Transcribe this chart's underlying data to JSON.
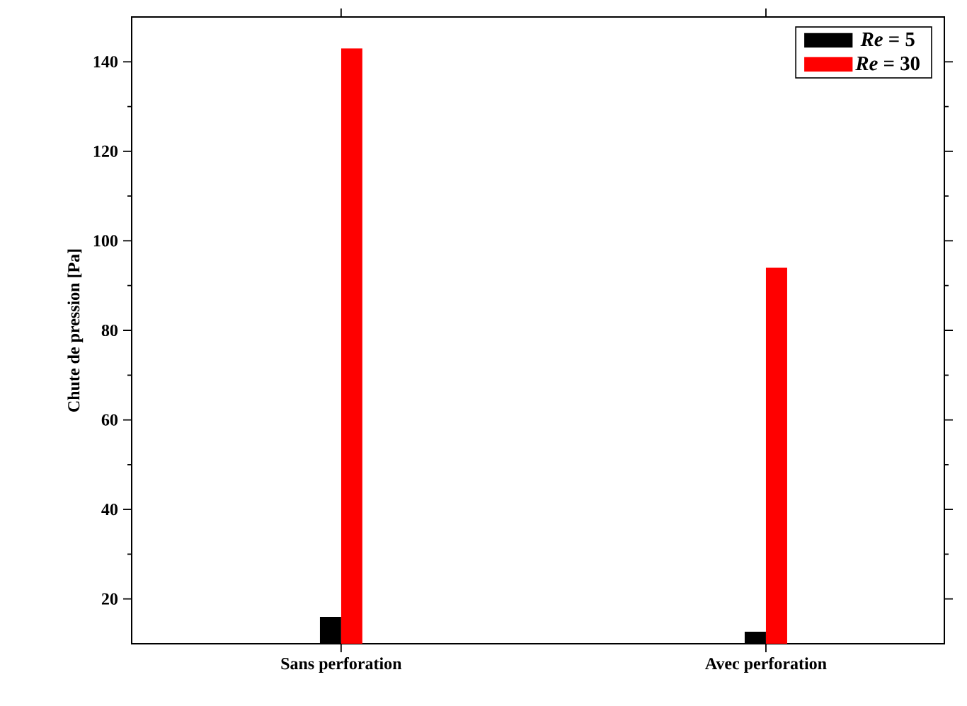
{
  "chart_data": {
    "type": "bar",
    "ylabel": "Chute de pression [Pa]",
    "categories": [
      "Sans perforation",
      "Avec perforation"
    ],
    "series": [
      {
        "name": "*Re* = 5",
        "color": "#000000",
        "values": [
          16,
          12.7
        ]
      },
      {
        "name": "*Re* = 30",
        "color": "#ff0000",
        "values": [
          143,
          94
        ]
      }
    ],
    "ylim": [
      10,
      150
    ],
    "yticks": [
      20,
      40,
      60,
      80,
      100,
      120,
      140
    ],
    "grid": false,
    "legend": "top right"
  }
}
